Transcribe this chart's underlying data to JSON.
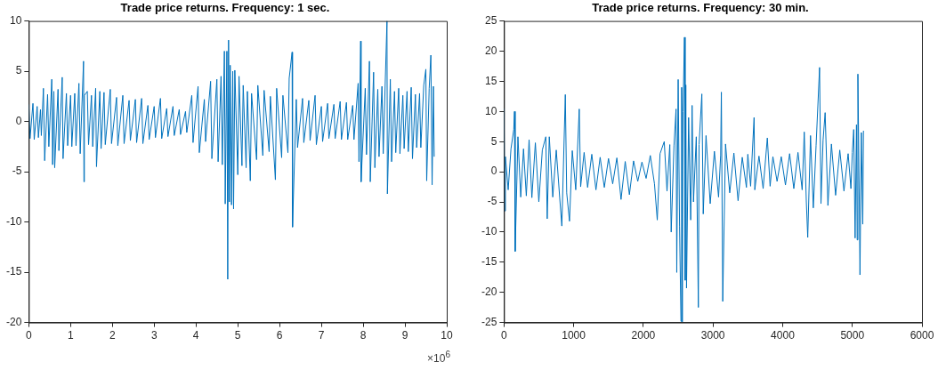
{
  "chart_data": [
    {
      "type": "line",
      "title": "Trade price returns. Frequency: 1 sec.",
      "annotations": [
        "×10$^{6}$"
      ],
      "xlim": [
        0,
        10
      ],
      "xticks": [
        0,
        1,
        2,
        3,
        4,
        5,
        6,
        7,
        8,
        9,
        10
      ],
      "ylim": [
        -20,
        10
      ],
      "yticks": [
        -20,
        -15,
        -10,
        -5,
        0,
        5,
        10
      ],
      "grid": false,
      "legend": false,
      "series": [
        {
          "color": "#0072bd",
          "x": [
            0,
            0.03,
            0.1,
            0.13,
            0.2,
            0.23,
            0.28,
            0.3,
            0.35,
            0.38,
            0.45,
            0.48,
            0.55,
            0.57,
            0.6,
            0.62,
            0.7,
            0.72,
            0.8,
            0.82,
            0.9,
            0.93,
            1.0,
            1.03,
            1.1,
            1.13,
            1.2,
            1.23,
            1.31,
            1.32,
            1.33,
            1.4,
            1.43,
            1.5,
            1.53,
            1.6,
            1.62,
            1.7,
            1.73,
            1.8,
            1.83,
            1.95,
            1.98,
            2.1,
            2.13,
            2.25,
            2.28,
            2.4,
            2.43,
            2.55,
            2.58,
            2.7,
            2.73,
            2.85,
            2.88,
            3.0,
            3.03,
            3.15,
            3.18,
            3.3,
            3.33,
            3.45,
            3.48,
            3.6,
            3.63,
            3.75,
            3.78,
            3.9,
            3.93,
            4.05,
            4.08,
            4.2,
            4.23,
            4.35,
            4.38,
            4.5,
            4.53,
            4.6,
            4.63,
            4.68,
            4.7,
            4.74,
            4.76,
            4.78,
            4.8,
            4.82,
            4.85,
            4.88,
            4.9,
            4.93,
            5.0,
            5.03,
            5.1,
            5.13,
            5.2,
            5.23,
            5.3,
            5.33,
            5.45,
            5.48,
            5.6,
            5.63,
            5.75,
            5.78,
            5.9,
            5.93,
            6.05,
            6.08,
            6.2,
            6.23,
            6.3,
            6.31,
            6.4,
            6.43,
            6.55,
            6.58,
            6.7,
            6.73,
            6.85,
            6.88,
            7.0,
            7.03,
            7.15,
            7.18,
            7.3,
            7.33,
            7.45,
            7.48,
            7.6,
            7.63,
            7.75,
            7.78,
            7.88,
            7.9,
            7.94,
            7.95,
            8.05,
            8.08,
            8.15,
            8.17,
            8.25,
            8.28,
            8.35,
            8.38,
            8.45,
            8.48,
            8.57,
            8.58,
            8.65,
            8.68,
            8.75,
            8.78,
            8.85,
            8.88,
            8.95,
            8.98,
            9.05,
            9.08,
            9.15,
            9.18,
            9.25,
            9.28,
            9.35,
            9.38,
            9.45,
            9.5,
            9.52,
            9.58,
            9.62,
            9.65,
            9.68,
            9.7
          ],
          "values": [
            1.7,
            -1.7,
            1.8,
            -1.8,
            1.5,
            -1.6,
            1.2,
            -1.4,
            3.3,
            -3.9,
            2.7,
            -2.5,
            4.2,
            -4.3,
            3.0,
            -4.6,
            3.2,
            -2.9,
            4.4,
            -3.7,
            2.8,
            -2.4,
            2.6,
            -2.5,
            2.8,
            -2.4,
            3.8,
            -3.2,
            6.0,
            -6.0,
            2.6,
            3.0,
            -2.3,
            2.6,
            -2.5,
            3.3,
            -4.5,
            3.0,
            -2.7,
            2.9,
            -2.3,
            3.2,
            -2.2,
            2.4,
            -2.4,
            2.6,
            -2.2,
            2.1,
            -1.9,
            2.2,
            -2.1,
            2.3,
            -2.2,
            1.6,
            -1.8,
            1.5,
            -1.6,
            2.3,
            -1.7,
            1.3,
            -1.5,
            1.5,
            -1.4,
            1.2,
            -1.3,
            1.0,
            -1.1,
            2.6,
            -2.1,
            3.5,
            -3.1,
            2.2,
            -2.0,
            4.0,
            -3.7,
            4.2,
            -4.0,
            4.5,
            -4.3,
            7.0,
            -8.2,
            7.0,
            -15.7,
            8.1,
            -8.0,
            5.6,
            -8.3,
            5.0,
            -8.7,
            5.1,
            -5.3,
            4.5,
            -4.4,
            3.6,
            -4.6,
            3.0,
            -5.9,
            2.8,
            -3.8,
            3.6,
            -3.4,
            3.1,
            -3.0,
            2.5,
            -5.8,
            3.3,
            -3.6,
            2.6,
            -3.1,
            4.3,
            6.9,
            -10.5,
            2.2,
            -2.6,
            2.3,
            -2.1,
            2.1,
            -1.9,
            2.6,
            -2.3,
            1.5,
            -2.0,
            1.8,
            -1.7,
            1.7,
            -1.7,
            2.0,
            -1.8,
            1.9,
            -1.8,
            1.6,
            -1.8,
            3.8,
            -4.0,
            8.0,
            -6.0,
            3.3,
            -3.3,
            6.0,
            -6.0,
            4.9,
            -4.6,
            3.2,
            -3.5,
            3.5,
            -3.2,
            10.0,
            -7.2,
            4.2,
            -4.0,
            3.0,
            -3.1,
            3.3,
            -3.2,
            2.6,
            -2.7,
            3.0,
            -3.0,
            3.4,
            -3.7,
            2.7,
            -2.6,
            2.8,
            -2.6,
            3.6,
            5.2,
            -5.9,
            3.3,
            6.6,
            -6.3,
            3.5,
            -3.5
          ]
        }
      ]
    },
    {
      "type": "line",
      "title": "Trade price returns. Frequency: 30 min.",
      "xlim": [
        0,
        6000
      ],
      "xticks": [
        0,
        1000,
        2000,
        3000,
        4000,
        5000,
        6000
      ],
      "ylim": [
        -25,
        25
      ],
      "yticks": [
        -25,
        -20,
        -15,
        -10,
        -5,
        0,
        5,
        10,
        15,
        20,
        25
      ],
      "grid": false,
      "legend": false,
      "series": [
        {
          "color": "#0072bd",
          "x": [
            0,
            10,
            20,
            60,
            100,
            140,
            150,
            160,
            200,
            240,
            280,
            320,
            360,
            400,
            450,
            500,
            550,
            600,
            620,
            650,
            700,
            750,
            800,
            830,
            880,
            900,
            940,
            980,
            1030,
            1080,
            1100,
            1150,
            1200,
            1260,
            1320,
            1380,
            1440,
            1500,
            1560,
            1620,
            1680,
            1740,
            1800,
            1860,
            1920,
            1980,
            2040,
            2100,
            2160,
            2200,
            2240,
            2300,
            2340,
            2380,
            2400,
            2440,
            2470,
            2480,
            2500,
            2520,
            2540,
            2550,
            2560,
            2570,
            2590,
            2600,
            2610,
            2620,
            2650,
            2680,
            2700,
            2720,
            2760,
            2790,
            2800,
            2840,
            2860,
            2900,
            2960,
            3020,
            3080,
            3110,
            3120,
            3140,
            3180,
            3240,
            3300,
            3360,
            3420,
            3480,
            3500,
            3540,
            3590,
            3600,
            3660,
            3720,
            3780,
            3820,
            3860,
            3920,
            3980,
            4040,
            4100,
            4160,
            4220,
            4280,
            4310,
            4340,
            4360,
            4400,
            4440,
            4480,
            4530,
            4550,
            4580,
            4610,
            4650,
            4700,
            4760,
            4820,
            4880,
            4940,
            4980,
            5000,
            5020,
            5040,
            5060,
            5070,
            5080,
            5100,
            5110,
            5130,
            5150,
            5160
          ],
          "values": [
            10.5,
            -6.5,
            2.5,
            -3.0,
            3.8,
            7.0,
            10.0,
            -13.2,
            5.8,
            -4.2,
            3.8,
            -4.0,
            5.3,
            -4.3,
            4.8,
            -5.0,
            3.6,
            5.8,
            -7.8,
            5.8,
            -4.2,
            3.6,
            -4.4,
            -9.0,
            12.8,
            -3.5,
            -8.2,
            3.5,
            -3.0,
            10.4,
            -2.5,
            3.2,
            -2.6,
            2.9,
            -3.0,
            2.4,
            -2.6,
            2.2,
            -2.0,
            2.3,
            -4.6,
            1.7,
            -3.8,
            1.8,
            -1.6,
            1.6,
            -1.1,
            2.7,
            -2.0,
            -8.0,
            3.0,
            5.0,
            -3.2,
            4.5,
            -10.0,
            4.3,
            10.4,
            -16.7,
            15.3,
            -9.0,
            -24.8,
            14.0,
            -24.9,
            10.0,
            22.3,
            -18.0,
            14.4,
            -19.3,
            9.0,
            -8.0,
            11.0,
            -5.0,
            5.8,
            -22.5,
            4.5,
            12.9,
            -7.0,
            6.0,
            -5.3,
            3.4,
            -4.2,
            2.8,
            13.2,
            -21.5,
            4.6,
            -3.5,
            3.1,
            -4.8,
            2.4,
            -2.6,
            2.9,
            -2.4,
            9.0,
            -3.0,
            2.6,
            -2.8,
            5.6,
            -2.4,
            2.5,
            -1.6,
            2.5,
            -2.2,
            3.0,
            -2.8,
            3.2,
            -3.0,
            6.6,
            -5.0,
            -10.9,
            6.0,
            -6.0,
            4.4,
            17.3,
            -5.3,
            5.2,
            9.8,
            -5.6,
            4.6,
            -3.9,
            3.6,
            -3.2,
            3.0,
            -2.8,
            3.2,
            7.0,
            -11.0,
            7.8,
            -11.3,
            16.2,
            -5.0,
            -17.1,
            6.5,
            -8.7,
            6.8
          ]
        }
      ]
    }
  ]
}
